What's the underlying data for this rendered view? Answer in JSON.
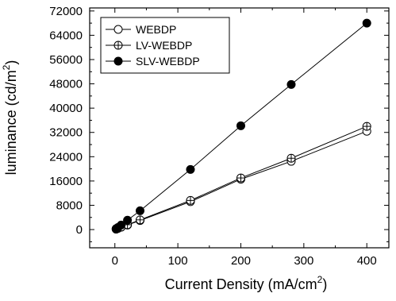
{
  "chart_data": {
    "type": "line",
    "title": "",
    "xlabel": "Current Density (mA/cm",
    "xlabel_sup": "2",
    "xlabel_end": ")",
    "ylabel": "luminance (cd/m",
    "ylabel_sup": "2",
    "ylabel_end": ")",
    "xlim": [
      -40,
      435
    ],
    "ylim": [
      -6000,
      73000
    ],
    "xticks": [
      0,
      100,
      200,
      300,
      400
    ],
    "yticks": [
      0,
      8000,
      16000,
      24000,
      32000,
      40000,
      48000,
      56000,
      64000,
      72000
    ],
    "grid": false,
    "legend_position": "top-left",
    "series": [
      {
        "name": "WEBDP",
        "marker": "open-circle",
        "x": [
          2,
          5,
          10,
          20,
          40,
          120,
          200,
          280,
          400
        ],
        "y": [
          150,
          400,
          800,
          1500,
          3000,
          9200,
          16600,
          22500,
          32400
        ]
      },
      {
        "name": "LV-WEBDP",
        "marker": "crossed-circle",
        "x": [
          2,
          5,
          10,
          20,
          40,
          120,
          200,
          280,
          400
        ],
        "y": [
          160,
          420,
          850,
          1600,
          3200,
          9600,
          17000,
          23500,
          34000
        ]
      },
      {
        "name": "SLV-WEBDP",
        "marker": "filled-circle",
        "x": [
          2,
          5,
          10,
          20,
          40,
          120,
          200,
          280,
          400
        ],
        "y": [
          300,
          700,
          1500,
          3100,
          6200,
          19800,
          34200,
          47800,
          68000
        ]
      }
    ]
  }
}
